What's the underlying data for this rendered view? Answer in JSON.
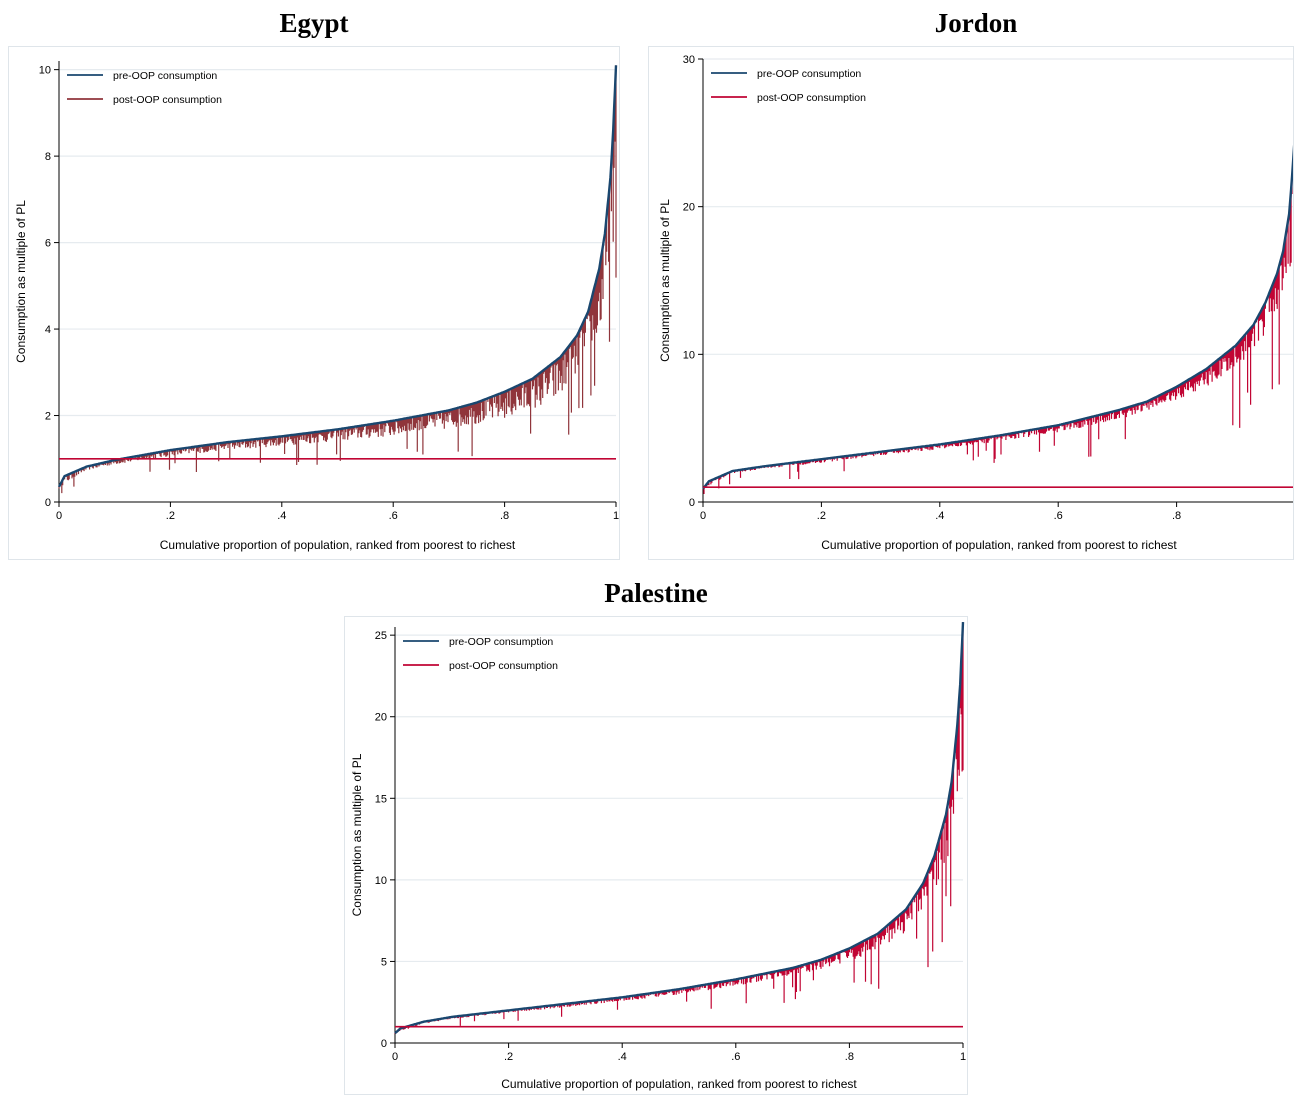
{
  "chart_data": [
    {
      "type": "line",
      "title": "Egypt",
      "xlabel": "Cumulative proportion of population, ranked from poorest to richest",
      "ylabel": "Consumption as multiple of PL",
      "xlim": [
        0,
        1
      ],
      "ylim": [
        0,
        10.2
      ],
      "xticks": [
        {
          "v": 0,
          "label": "0"
        },
        {
          "v": 0.2,
          "label": ".2"
        },
        {
          "v": 0.4,
          "label": ".4"
        },
        {
          "v": 0.6,
          "label": ".6"
        },
        {
          "v": 0.8,
          "label": ".8"
        },
        {
          "v": 1,
          "label": "1"
        }
      ],
      "yticks": [
        {
          "v": 0,
          "label": "0"
        },
        {
          "v": 2,
          "label": "2"
        },
        {
          "v": 4,
          "label": "4"
        },
        {
          "v": 6,
          "label": "6"
        },
        {
          "v": 8,
          "label": "8"
        },
        {
          "v": 10,
          "label": "10"
        }
      ],
      "grid": true,
      "legend": "top-left",
      "poverty_line": 1,
      "series": [
        {
          "name": "pre-OOP consumption",
          "color": "#1a476f",
          "x": [
            0,
            0.01,
            0.05,
            0.1,
            0.2,
            0.3,
            0.4,
            0.5,
            0.6,
            0.7,
            0.75,
            0.8,
            0.85,
            0.9,
            0.93,
            0.95,
            0.97,
            0.98,
            0.99,
            0.995,
            1.0
          ],
          "y": [
            0.35,
            0.6,
            0.82,
            0.97,
            1.2,
            1.38,
            1.52,
            1.68,
            1.88,
            2.12,
            2.3,
            2.55,
            2.85,
            3.35,
            3.85,
            4.4,
            5.4,
            6.2,
            7.5,
            8.6,
            10.1
          ]
        },
        {
          "name": "post-OOP consumption",
          "color": "#90353b",
          "x": [
            0,
            0.05,
            0.1,
            0.2,
            0.3,
            0.4,
            0.5,
            0.6,
            0.7,
            0.8,
            0.85,
            0.9,
            0.95,
            0.97,
            0.99,
            1.0
          ],
          "y": [
            0.3,
            0.72,
            0.85,
            1.02,
            1.15,
            1.25,
            1.35,
            1.45,
            1.6,
            1.8,
            1.95,
            2.2,
            2.8,
            3.3,
            4.5,
            5.5
          ]
        }
      ]
    },
    {
      "type": "line",
      "title": "Jordon",
      "xlabel": "Cumulative proportion of population, ranked from poorest to richest",
      "ylabel": "Consumption as multiple of PL",
      "xlim": [
        0,
        1
      ],
      "ylim": [
        0,
        30
      ],
      "xticks": [
        {
          "v": 0,
          "label": "0"
        },
        {
          "v": 0.2,
          "label": ".2"
        },
        {
          "v": 0.4,
          "label": ".4"
        },
        {
          "v": 0.6,
          "label": ".6"
        },
        {
          "v": 0.8,
          "label": ".8"
        }
      ],
      "yticks": [
        {
          "v": 0,
          "label": "0"
        },
        {
          "v": 10,
          "label": "10"
        },
        {
          "v": 20,
          "label": "20"
        },
        {
          "v": 30,
          "label": "30"
        }
      ],
      "grid": true,
      "legend": "top-left",
      "poverty_line": 1,
      "series": [
        {
          "name": "pre-OOP consumption",
          "color": "#1a476f",
          "x": [
            0,
            0.01,
            0.05,
            0.1,
            0.2,
            0.3,
            0.4,
            0.5,
            0.6,
            0.7,
            0.75,
            0.8,
            0.85,
            0.9,
            0.93,
            0.95,
            0.97,
            0.98,
            0.99,
            0.995,
            1.0
          ],
          "y": [
            0.9,
            1.4,
            2.1,
            2.4,
            2.9,
            3.4,
            3.9,
            4.5,
            5.2,
            6.2,
            6.8,
            7.8,
            9.0,
            10.6,
            12.0,
            13.5,
            15.5,
            17.0,
            19.5,
            22.0,
            25.0
          ]
        },
        {
          "name": "post-OOP consumption",
          "color": "#c10534",
          "x": [
            0,
            0.05,
            0.1,
            0.2,
            0.3,
            0.4,
            0.5,
            0.6,
            0.7,
            0.8,
            0.85,
            0.9,
            0.95,
            0.97,
            0.99,
            1.0
          ],
          "y": [
            0.85,
            1.9,
            2.2,
            2.6,
            3.1,
            3.5,
            4.0,
            4.6,
            5.4,
            6.6,
            7.5,
            8.5,
            10.5,
            12.0,
            14.0,
            15.0
          ]
        }
      ]
    },
    {
      "type": "line",
      "title": "Palestine",
      "xlabel": "Cumulative proportion of population, ranked from poorest to richest",
      "ylabel": "Consumption as multiple of PL",
      "xlim": [
        0,
        1
      ],
      "ylim": [
        0,
        25.5
      ],
      "xticks": [
        {
          "v": 0,
          "label": "0"
        },
        {
          "v": 0.2,
          "label": ".2"
        },
        {
          "v": 0.4,
          "label": ".4"
        },
        {
          "v": 0.6,
          "label": ".6"
        },
        {
          "v": 0.8,
          "label": ".8"
        },
        {
          "v": 1,
          "label": "1"
        }
      ],
      "yticks": [
        {
          "v": 0,
          "label": "0"
        },
        {
          "v": 5,
          "label": "5"
        },
        {
          "v": 10,
          "label": "10"
        },
        {
          "v": 15,
          "label": "15"
        },
        {
          "v": 20,
          "label": "20"
        },
        {
          "v": 25,
          "label": "25"
        }
      ],
      "grid": true,
      "legend": "top-left",
      "poverty_line": 1,
      "series": [
        {
          "name": "pre-OOP consumption",
          "color": "#1a476f",
          "x": [
            0,
            0.01,
            0.05,
            0.1,
            0.2,
            0.3,
            0.4,
            0.5,
            0.6,
            0.7,
            0.75,
            0.8,
            0.85,
            0.9,
            0.93,
            0.95,
            0.97,
            0.98,
            0.99,
            0.995,
            1.0
          ],
          "y": [
            0.6,
            0.9,
            1.3,
            1.6,
            2.0,
            2.4,
            2.8,
            3.3,
            3.9,
            4.6,
            5.1,
            5.8,
            6.7,
            8.2,
            9.8,
            11.5,
            14.0,
            16.0,
            19.5,
            22.0,
            25.8
          ]
        },
        {
          "name": "post-OOP consumption",
          "color": "#c10534",
          "x": [
            0,
            0.05,
            0.1,
            0.2,
            0.3,
            0.4,
            0.5,
            0.6,
            0.7,
            0.8,
            0.85,
            0.9,
            0.95,
            0.97,
            0.99,
            1.0
          ],
          "y": [
            0.55,
            1.15,
            1.45,
            1.8,
            2.15,
            2.5,
            2.9,
            3.4,
            4.0,
            4.8,
            5.5,
            6.5,
            8.5,
            10.0,
            12.0,
            13.0
          ]
        }
      ]
    }
  ]
}
